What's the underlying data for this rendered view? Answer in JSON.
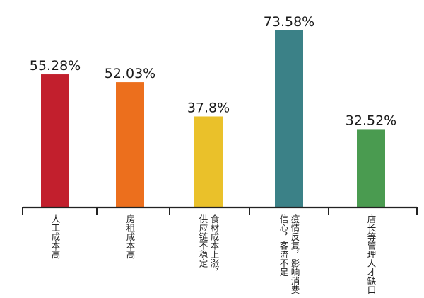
{
  "chart_data": {
    "type": "bar",
    "title": "",
    "xlabel": "",
    "ylabel": "",
    "unit": "%",
    "ylim": [
      0,
      80
    ],
    "grid": false,
    "legend": "none",
    "categories": [
      {
        "lines": [
          "人工成本高"
        ]
      },
      {
        "lines": [
          "房租成本高"
        ]
      },
      {
        "lines": [
          "食材成本上涨，",
          "供应链不稳定"
        ]
      },
      {
        "lines": [
          "疫情反复，影响消费",
          "信心，客流不足"
        ]
      },
      {
        "lines": [
          "店长等管理人才缺口"
        ]
      }
    ],
    "values": [
      55.28,
      52.03,
      37.8,
      73.58,
      32.52
    ],
    "value_labels": [
      "55.28%",
      "52.03%",
      "37.8%",
      "73.58%",
      "32.52%"
    ],
    "colors": [
      "#c21f2d",
      "#ec6f1d",
      "#eac12a",
      "#3b8187",
      "#4a9b50"
    ]
  }
}
